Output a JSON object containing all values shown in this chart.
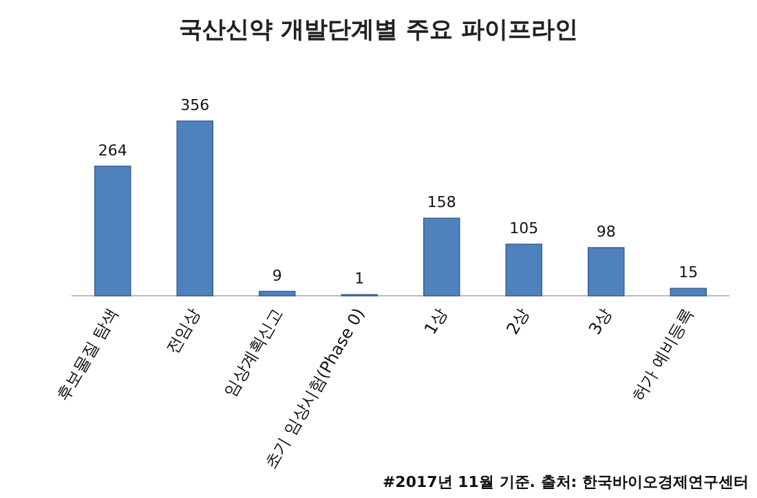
{
  "chart_data": {
    "type": "bar",
    "title": "국산신약 개발단계별 주요 파이프라인",
    "categories": [
      "후보물질 탐색",
      "전임상",
      "임상계획신고",
      "초기 임상시험(Phase 0)",
      "1상",
      "2상",
      "3상",
      "허가 예비등록"
    ],
    "values": [
      264,
      356,
      9,
      1,
      158,
      105,
      98,
      15
    ],
    "color": "#4f81bd",
    "data_labels": true,
    "annotations": [
      "#2017년 11월 기준. 출처: 한국바이오경제연구센터"
    ]
  }
}
